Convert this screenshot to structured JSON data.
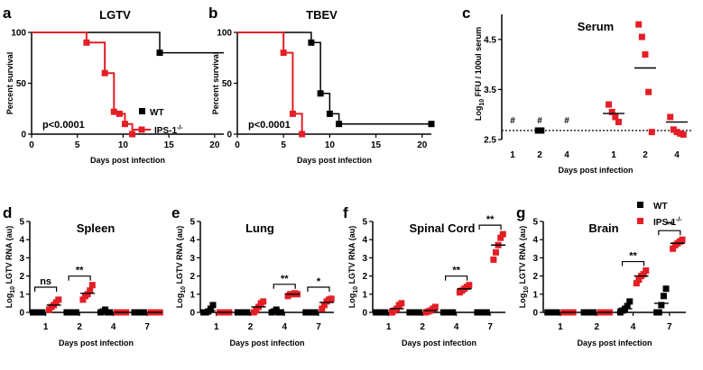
{
  "figure": {
    "colors": {
      "wt": "#000000",
      "ips": "#e41e25",
      "axis": "#000000"
    },
    "legend_top": {
      "wt_label": "WT",
      "ips_label": "IPS-1",
      "ips_sup": "-/-"
    },
    "legend_mid": {
      "wt_label": "WT",
      "ips_label": "IPS-1",
      "ips_sup": "-/-"
    }
  },
  "chart_data": [
    {
      "id": "a",
      "panel_label": "a",
      "type": "line",
      "title": "LGTV",
      "xlabel": "Days post infection",
      "ylabel": "Percent survival",
      "xlim": [
        0,
        21
      ],
      "ylim": [
        0,
        100
      ],
      "xticks": [
        0,
        5,
        10,
        15,
        20
      ],
      "yticks": [
        0,
        50,
        100
      ],
      "annotation": "p<0.0001",
      "series": [
        {
          "name": "WT",
          "steps": [
            [
              0,
              100
            ],
            [
              14,
              100
            ],
            [
              14,
              80
            ],
            [
              21,
              80
            ]
          ],
          "markers": [
            [
              14,
              80
            ]
          ]
        },
        {
          "name": "IPS-1-/-",
          "steps": [
            [
              0,
              100
            ],
            [
              6,
              100
            ],
            [
              6,
              90
            ],
            [
              8,
              90
            ],
            [
              8,
              60
            ],
            [
              9,
              60
            ],
            [
              9,
              22
            ],
            [
              9.6,
              22
            ],
            [
              9.6,
              20
            ],
            [
              10.2,
              20
            ],
            [
              10.2,
              10
            ],
            [
              11,
              10
            ],
            [
              11,
              0
            ]
          ],
          "markers": [
            [
              6,
              90
            ],
            [
              8,
              60
            ],
            [
              9,
              22
            ],
            [
              9.6,
              20
            ],
            [
              10.2,
              10
            ],
            [
              11,
              0
            ]
          ]
        }
      ]
    },
    {
      "id": "b",
      "panel_label": "b",
      "type": "line",
      "title": "TBEV",
      "xlabel": "Days post infection",
      "ylabel": "Percent survival",
      "xlim": [
        0,
        21
      ],
      "ylim": [
        0,
        100
      ],
      "xticks": [
        0,
        5,
        10,
        15,
        20
      ],
      "yticks": [
        0,
        50,
        100
      ],
      "annotation": "p<0.0001",
      "series": [
        {
          "name": "WT",
          "steps": [
            [
              0,
              100
            ],
            [
              8,
              100
            ],
            [
              8,
              90
            ],
            [
              9,
              90
            ],
            [
              9,
              40
            ],
            [
              10,
              40
            ],
            [
              10,
              20
            ],
            [
              11,
              20
            ],
            [
              11,
              10
            ],
            [
              21,
              10
            ]
          ],
          "markers": [
            [
              8,
              90
            ],
            [
              9,
              40
            ],
            [
              10,
              20
            ],
            [
              11,
              10
            ],
            [
              21,
              10
            ]
          ]
        },
        {
          "name": "IPS-1-/-",
          "steps": [
            [
              0,
              100
            ],
            [
              5,
              100
            ],
            [
              5,
              80
            ],
            [
              6,
              80
            ],
            [
              6,
              20
            ],
            [
              7,
              20
            ],
            [
              7,
              0
            ]
          ],
          "markers": [
            [
              5,
              80
            ],
            [
              6,
              20
            ],
            [
              7,
              0
            ]
          ]
        }
      ]
    },
    {
      "id": "c",
      "panel_label": "c",
      "type": "scatter",
      "title": "Serum",
      "xlabel": "Days post  infection",
      "ylabel": "Log10 FFU / 100ul serum",
      "ylim": [
        2.5,
        5.0
      ],
      "yticks": [
        2.5,
        3.5,
        4.5
      ],
      "ytick_labels": [
        "2.5",
        "3.5",
        "4.5"
      ],
      "detection_limit": 2.68,
      "categories": [
        "1",
        "2",
        "4",
        "1",
        "2",
        "4"
      ],
      "symbol": "#",
      "groups": [
        {
          "label": "1",
          "series": "WT",
          "points": [],
          "mean": null,
          "symbol": true
        },
        {
          "label": "2",
          "series": "WT",
          "points": [
            2.68,
            2.68
          ],
          "mean": null,
          "symbol": true
        },
        {
          "label": "4",
          "series": "WT",
          "points": [],
          "mean": null,
          "symbol": true
        },
        {
          "label": "1",
          "series": "IPS-1-/-",
          "points": [
            3.2,
            3.05,
            2.95,
            2.85
          ],
          "mean": 3.02,
          "symbol": false
        },
        {
          "label": "2",
          "series": "IPS-1-/-",
          "points": [
            4.8,
            4.55,
            4.2,
            3.45,
            2.65
          ],
          "mean": 3.93,
          "symbol": false
        },
        {
          "label": "4",
          "series": "IPS-1-/-",
          "points": [
            2.95,
            2.7,
            2.65,
            2.62,
            2.6
          ],
          "mean": 2.85,
          "symbol": false
        }
      ]
    },
    {
      "id": "d",
      "panel_label": "d",
      "type": "scatter",
      "title": "Spleen",
      "xlabel": "Days post  infection",
      "ylabel": "Log10 LGTV RNA (au)",
      "ylim": [
        0,
        5
      ],
      "yticks": [
        0,
        1,
        2,
        3,
        4,
        5
      ],
      "categories": [
        "1",
        "2",
        "4",
        "7"
      ],
      "groups": [
        {
          "day": "1",
          "wt": [
            0,
            0,
            0,
            0,
            0
          ],
          "wt_mean": 0,
          "ips": [
            0.15,
            0.3,
            0.4,
            0.55,
            0.7
          ],
          "ips_mean": 0.4
        },
        {
          "day": "2",
          "wt": [
            0,
            0,
            0,
            0,
            0
          ],
          "wt_mean": 0,
          "ips": [
            0.7,
            0.9,
            1.0,
            1.2,
            1.5
          ],
          "ips_mean": 1.05
        },
        {
          "day": "4",
          "wt": [
            0,
            0.05,
            0.15,
            0,
            0
          ],
          "wt_mean": 0.03,
          "ips": [
            0,
            0,
            0,
            0,
            0
          ],
          "ips_mean": 0
        },
        {
          "day": "7",
          "wt": [
            0,
            0,
            0,
            0,
            0
          ],
          "wt_mean": 0,
          "ips": [
            0,
            0,
            0,
            0,
            0
          ],
          "ips_mean": 0
        }
      ],
      "significance": [
        {
          "day": "1",
          "text": "ns"
        },
        {
          "day": "2",
          "text": "**"
        }
      ]
    },
    {
      "id": "e",
      "panel_label": "e",
      "type": "scatter",
      "title": "Lung",
      "xlabel": "Days post  infection",
      "ylabel": "Log10 LGTV RNA (au)",
      "ylim": [
        0,
        5
      ],
      "yticks": [
        0,
        1,
        2,
        3,
        4,
        5
      ],
      "categories": [
        "1",
        "2",
        "4",
        "7"
      ],
      "groups": [
        {
          "day": "1",
          "wt": [
            0,
            0,
            0.05,
            0.2,
            0.4
          ],
          "wt_mean": 0.1,
          "ips": [
            0,
            0,
            0,
            0,
            0
          ],
          "ips_mean": 0
        },
        {
          "day": "2",
          "wt": [
            0,
            0,
            0,
            0,
            0
          ],
          "wt_mean": 0,
          "ips": [
            0,
            0.1,
            0.3,
            0.5,
            0.6
          ],
          "ips_mean": 0.3
        },
        {
          "day": "4",
          "wt": [
            0,
            0.05,
            0.15,
            0,
            0
          ],
          "wt_mean": 0.05,
          "ips": [
            0.9,
            1.0,
            1.0,
            1.05,
            1.0
          ],
          "ips_mean": 1.0
        },
        {
          "day": "7",
          "wt": [
            0,
            0,
            0,
            0,
            0
          ],
          "wt_mean": 0,
          "ips": [
            0.2,
            0.4,
            0.6,
            0.7,
            0.75
          ],
          "ips_mean": 0.55
        }
      ],
      "significance": [
        {
          "day": "4",
          "text": "**"
        },
        {
          "day": "7",
          "text": "*"
        }
      ]
    },
    {
      "id": "f",
      "panel_label": "f",
      "type": "scatter",
      "title": "Spinal Cord",
      "xlabel": "Days post  infection",
      "ylabel": "Log10 LGTV RNA (au)",
      "ylim": [
        0,
        5
      ],
      "yticks": [
        0,
        1,
        2,
        3,
        4,
        5
      ],
      "categories": [
        "1",
        "2",
        "4",
        "7"
      ],
      "groups": [
        {
          "day": "1",
          "wt": [
            0,
            0,
            0,
            0,
            0
          ],
          "wt_mean": 0,
          "ips": [
            0,
            0.1,
            0.2,
            0.4,
            0.5
          ],
          "ips_mean": 0.2
        },
        {
          "day": "2",
          "wt": [
            0,
            0,
            0,
            0,
            0
          ],
          "wt_mean": 0,
          "ips": [
            0,
            0.05,
            0.1,
            0.2,
            0.3
          ],
          "ips_mean": 0.1
        },
        {
          "day": "4",
          "wt": [
            0,
            0,
            0,
            0,
            0
          ],
          "wt_mean": 0,
          "ips": [
            1.1,
            1.2,
            1.3,
            1.4,
            1.5
          ],
          "ips_mean": 1.3
        },
        {
          "day": "7",
          "wt": [
            0,
            0,
            0,
            0,
            0
          ],
          "wt_mean": 0,
          "ips": [
            2.9,
            3.3,
            3.7,
            4.1,
            4.3
          ],
          "ips_mean": 3.7
        }
      ],
      "significance": [
        {
          "day": "4",
          "text": "**"
        },
        {
          "day": "7",
          "text": "**"
        }
      ]
    },
    {
      "id": "g",
      "panel_label": "g",
      "type": "scatter",
      "title": "Brain",
      "xlabel": "Days post  infection",
      "ylabel": "Log10 LGTV RNA (au)",
      "ylim": [
        0,
        5
      ],
      "yticks": [
        0,
        1,
        2,
        3,
        4,
        5
      ],
      "categories": [
        "1",
        "2",
        "4",
        "7"
      ],
      "groups": [
        {
          "day": "1",
          "wt": [
            0,
            0,
            0,
            0,
            0
          ],
          "wt_mean": 0,
          "ips": [
            0,
            0,
            0,
            0,
            0
          ],
          "ips_mean": 0
        },
        {
          "day": "2",
          "wt": [
            0,
            0,
            0,
            0,
            0
          ],
          "wt_mean": 0,
          "ips": [
            0,
            0,
            0,
            0,
            0
          ],
          "ips_mean": 0
        },
        {
          "day": "4",
          "wt": [
            0,
            0.1,
            0.2,
            0.35,
            0.6
          ],
          "wt_mean": 0.2,
          "ips": [
            1.6,
            1.8,
            2.0,
            2.1,
            2.3
          ],
          "ips_mean": 2.0
        },
        {
          "day": "7",
          "wt": [
            0,
            0,
            0.4,
            0.9,
            1.3
          ],
          "wt_mean": 0.5,
          "ips": [
            3.5,
            3.7,
            3.8,
            3.9,
            4.0
          ],
          "ips_mean": 3.8
        }
      ],
      "significance": [
        {
          "day": "4",
          "text": "**"
        },
        {
          "day": "7",
          "text": "**"
        }
      ]
    }
  ]
}
